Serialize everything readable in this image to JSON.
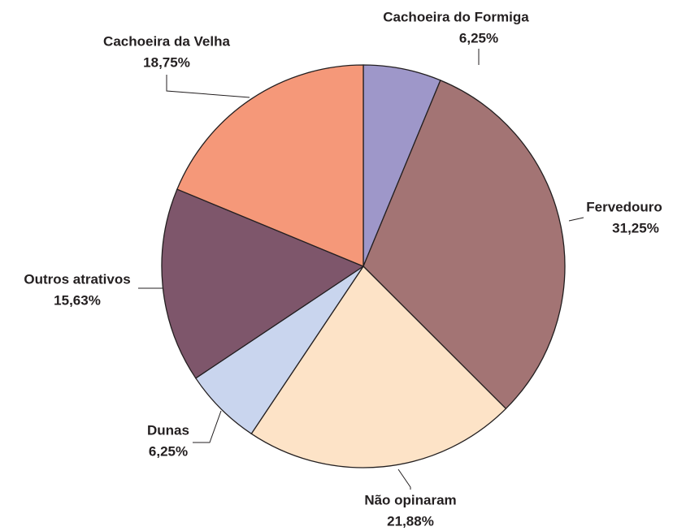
{
  "chart_data": {
    "type": "pie",
    "categories": [
      "Cachoeira do Formiga",
      "Fervedouro",
      "Não opinaram",
      "Dunas",
      "Outros atrativos",
      "Cachoeira da Velha"
    ],
    "values": [
      6.25,
      31.25,
      21.88,
      6.25,
      15.63,
      18.75
    ],
    "value_labels": [
      "6,25%",
      "31,25%",
      "21,88%",
      "6,25%",
      "15,63%",
      "18,75%"
    ],
    "colors": [
      "#9e97c9",
      "#a37474",
      "#fde3c7",
      "#c9d5ee",
      "#7e566b",
      "#f59879"
    ]
  }
}
